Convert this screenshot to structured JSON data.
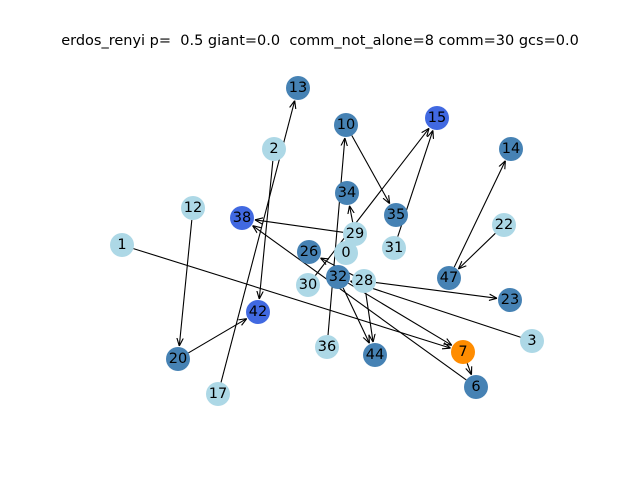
{
  "title": "erdos_renyi p=  0.5 giant=0.0  comm_not_alone=8 comm=30 gcs=0.0",
  "colors": {
    "light": "#add8e6",
    "steel": "#4682b4",
    "royal": "#4169e1",
    "orange": "#ff8c00",
    "edge": "#000000"
  },
  "nodes": [
    {
      "id": "13",
      "color": "steel"
    },
    {
      "id": "2",
      "color": "light"
    },
    {
      "id": "10",
      "color": "steel"
    },
    {
      "id": "15",
      "color": "royal"
    },
    {
      "id": "14",
      "color": "steel"
    },
    {
      "id": "34",
      "color": "steel"
    },
    {
      "id": "12",
      "color": "light"
    },
    {
      "id": "38",
      "color": "royal"
    },
    {
      "id": "35",
      "color": "steel"
    },
    {
      "id": "29",
      "color": "light"
    },
    {
      "id": "22",
      "color": "light"
    },
    {
      "id": "1",
      "color": "light"
    },
    {
      "id": "26",
      "color": "steel"
    },
    {
      "id": "0",
      "color": "light"
    },
    {
      "id": "31",
      "color": "light"
    },
    {
      "id": "47",
      "color": "steel"
    },
    {
      "id": "32",
      "color": "steel"
    },
    {
      "id": "28",
      "color": "light"
    },
    {
      "id": "30",
      "color": "light"
    },
    {
      "id": "23",
      "color": "steel"
    },
    {
      "id": "42",
      "color": "royal"
    },
    {
      "id": "3",
      "color": "light"
    },
    {
      "id": "36",
      "color": "light"
    },
    {
      "id": "44",
      "color": "steel"
    },
    {
      "id": "7",
      "color": "orange"
    },
    {
      "id": "20",
      "color": "steel"
    },
    {
      "id": "6",
      "color": "steel"
    },
    {
      "id": "17",
      "color": "light"
    }
  ],
  "edges": [
    [
      "17",
      "13"
    ],
    [
      "2",
      "42"
    ],
    [
      "20",
      "42"
    ],
    [
      "12",
      "20"
    ],
    [
      "1",
      "7"
    ],
    [
      "10",
      "35"
    ],
    [
      "31",
      "15"
    ],
    [
      "30",
      "15"
    ],
    [
      "29",
      "38"
    ],
    [
      "29",
      "34"
    ],
    [
      "36",
      "10"
    ],
    [
      "47",
      "14"
    ],
    [
      "22",
      "47"
    ],
    [
      "28",
      "26"
    ],
    [
      "28",
      "23"
    ],
    [
      "28",
      "44"
    ],
    [
      "32",
      "44"
    ],
    [
      "3",
      "32"
    ],
    [
      "6",
      "38"
    ],
    [
      "32",
      "7"
    ],
    [
      "7",
      "6"
    ]
  ]
}
